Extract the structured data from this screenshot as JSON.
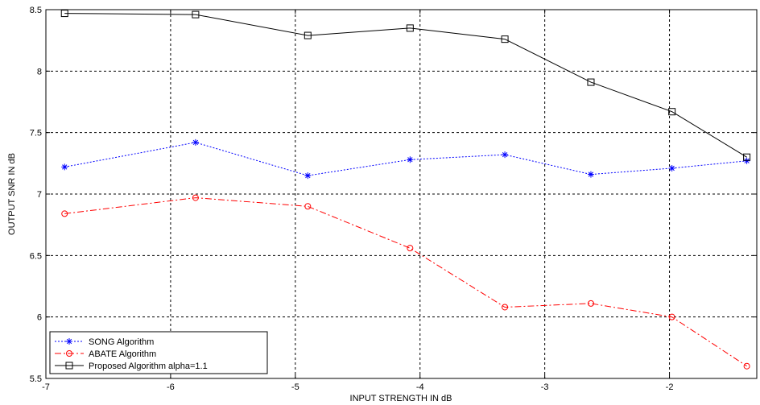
{
  "chart_data": {
    "type": "line",
    "title": "",
    "xlabel": "INPUT STRENGTH IN dB",
    "ylabel": "OUTPUT SNR IN dB",
    "xlim": [
      -7,
      -1.3
    ],
    "ylim": [
      5.5,
      8.5
    ],
    "xticks": [
      -7,
      -6,
      -5,
      -4,
      -3,
      -2
    ],
    "yticks": [
      5.5,
      6,
      6.5,
      7,
      7.5,
      8,
      8.5
    ],
    "xtick_labels": [
      "-7",
      "-6",
      "-5",
      "-4",
      "-3",
      "-2"
    ],
    "ytick_labels": [
      "5.5",
      "6",
      "6.5",
      "7",
      "7.5",
      "8",
      "8.5"
    ],
    "grid": true,
    "legend_position": "bottom-left",
    "x": [
      -6.85,
      -5.8,
      -4.9,
      -4.08,
      -3.32,
      -2.63,
      -1.98,
      -1.38
    ],
    "series": [
      {
        "name": "SONG Algorithm",
        "color": "#0000ff",
        "dash": "dotted",
        "marker": "star",
        "values": [
          7.22,
          7.42,
          7.15,
          7.28,
          7.32,
          7.16,
          7.21,
          7.27
        ]
      },
      {
        "name": "ABATE Algorithm",
        "color": "#ff0000",
        "dash": "dashdot",
        "marker": "circle",
        "values": [
          6.84,
          6.97,
          6.9,
          6.56,
          6.08,
          6.11,
          6.0,
          5.6
        ]
      },
      {
        "name": "Proposed Algorithm alpha=1.1",
        "color": "#000000",
        "dash": "solid",
        "marker": "square",
        "values": [
          8.47,
          8.46,
          8.29,
          8.35,
          8.26,
          7.91,
          7.67,
          7.3
        ]
      }
    ]
  }
}
